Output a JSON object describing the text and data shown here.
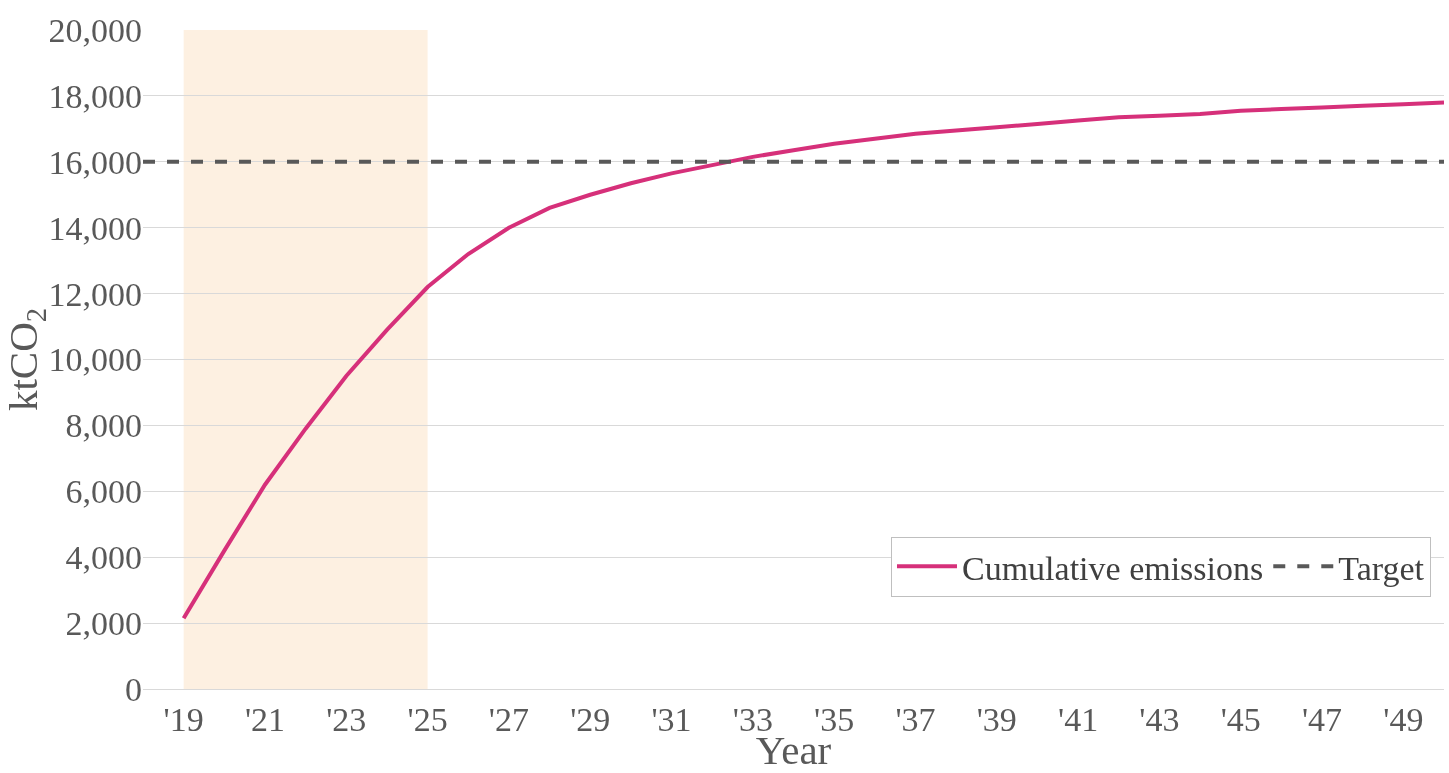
{
  "chart_data": {
    "type": "line",
    "xlabel": "Year",
    "ylabel": "ktCO$_{2}$",
    "categories": [
      "'19",
      null,
      "'21",
      null,
      "'23",
      null,
      "'25",
      null,
      "'27",
      null,
      "'29",
      null,
      "'31",
      null,
      "'33",
      null,
      "'35",
      null,
      "'37",
      null,
      "'39",
      null,
      "'41",
      null,
      "'43",
      null,
      "'45",
      null,
      "'47",
      null,
      "'49",
      null
    ],
    "series": [
      {
        "name": "Cumulative emissions",
        "color": "#d6307a",
        "values": [
          2150,
          4200,
          6200,
          7900,
          9500,
          10900,
          12200,
          13200,
          14000,
          14600,
          15000,
          15350,
          15650,
          15900,
          16150,
          16350,
          16550,
          16700,
          16850,
          16950,
          17050,
          17150,
          17250,
          17350,
          17400,
          17450,
          17550,
          17600,
          17650,
          17700,
          17750,
          17800
        ]
      }
    ],
    "ref_lines": [
      {
        "axis": "y",
        "value": 16000,
        "label": "Target",
        "color": "#595959",
        "line_style": "dashed"
      }
    ],
    "bands": [
      {
        "axis": "x",
        "from": "'19",
        "to": "'25",
        "color": "#fdf0e1"
      }
    ],
    "ylim": [
      0,
      20000
    ],
    "yticks": [
      {
        "value": 0,
        "label": "0"
      },
      {
        "value": 2000,
        "label": "2,000"
      },
      {
        "value": 4000,
        "label": "4,000"
      },
      {
        "value": 6000,
        "label": "6,000"
      },
      {
        "value": 8000,
        "label": "8,000"
      },
      {
        "value": 10000,
        "label": "10,000"
      },
      {
        "value": 12000,
        "label": "12,000"
      },
      {
        "value": 14000,
        "label": "14,000"
      },
      {
        "value": 16000,
        "label": "16,000"
      },
      {
        "value": 18000,
        "label": "18,000"
      },
      {
        "value": 20000,
        "label": "20,000"
      }
    ],
    "grid": "y",
    "legend": "bottom right",
    "marker": "none",
    "line_style": "solid"
  }
}
